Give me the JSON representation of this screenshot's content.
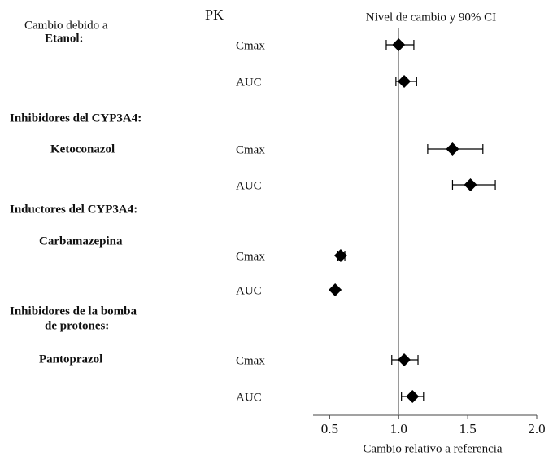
{
  "chart_data": {
    "type": "forest",
    "pk_header": "PK",
    "ci_header": "Nivel de cambio y 90% CI",
    "x_label": "Cambio relativo a referencia",
    "annotations": [
      "Cambio debido a",
      "Etanol:",
      "Inhibidores del CYP3A4:",
      "Ketoconazol",
      "Inductores del CYP3A4:",
      "Carbamazepina",
      "Inhibidores de la bomba",
      "de protones:",
      "Pantoprazol"
    ],
    "rows": [
      {
        "name": "Cmax",
        "value": 1.0,
        "low": 0.91,
        "high": 1.11
      },
      {
        "name": "AUC",
        "value": 1.04,
        "low": 0.98,
        "high": 1.13
      },
      {
        "name": "Cmax",
        "value": 1.39,
        "low": 1.21,
        "high": 1.61
      },
      {
        "name": "AUC",
        "value": 1.52,
        "low": 1.39,
        "high": 1.7
      },
      {
        "name": "Cmax",
        "value": 0.58,
        "low": 0.56,
        "high": 0.61
      },
      {
        "name": "AUC",
        "value": 0.54,
        "low": 0.53,
        "high": 0.55
      },
      {
        "name": "Cmax",
        "value": 1.04,
        "low": 0.95,
        "high": 1.14
      },
      {
        "name": "AUC",
        "value": 1.1,
        "low": 1.02,
        "high": 1.18
      }
    ],
    "reference": 1,
    "xlim": [
      0.38,
      2.0
    ],
    "xticks": [
      0.5,
      {
        "value": 1,
        "label": "1.0"
      },
      1.5,
      {
        "value": 2,
        "label": "2.0"
      }
    ],
    "color": "#000000"
  }
}
